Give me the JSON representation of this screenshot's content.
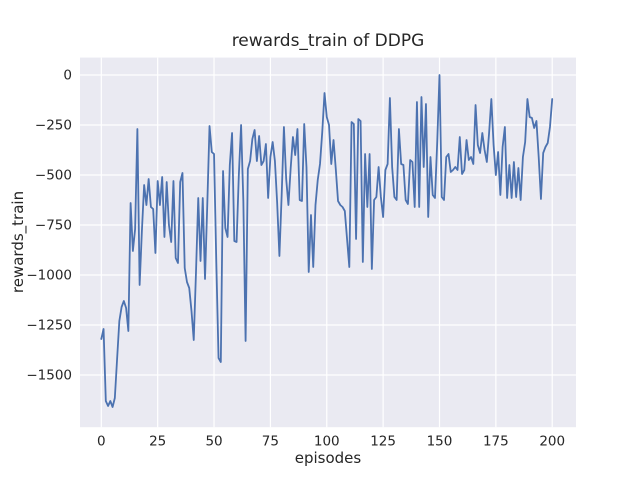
{
  "figure": {
    "background": "#ffffff",
    "axes_background": "#eaeaf2",
    "grid_color": "#ffffff",
    "text_color": "#262626"
  },
  "chart_data": {
    "type": "line",
    "title": "rewards_train of DDPG",
    "xlabel": "episodes",
    "ylabel": "rewards_train",
    "legend": "none",
    "grid": "on",
    "line_color": "#4c72b0",
    "x_start": 0,
    "x_step": 1,
    "x_ticks": [
      {
        "v": 0,
        "label": "0"
      },
      {
        "v": 25,
        "label": "25"
      },
      {
        "v": 50,
        "label": "50"
      },
      {
        "v": 75,
        "label": "75"
      },
      {
        "v": 100,
        "label": "100"
      },
      {
        "v": 125,
        "label": "125"
      },
      {
        "v": 150,
        "label": "150"
      },
      {
        "v": 175,
        "label": "175"
      },
      {
        "v": 200,
        "label": "200"
      }
    ],
    "y_ticks": [
      {
        "v": 0,
        "label": "0"
      },
      {
        "v": -250,
        "label": "−250"
      },
      {
        "v": -500,
        "label": "−500"
      },
      {
        "v": -750,
        "label": "−750"
      },
      {
        "v": -1000,
        "label": "−1000"
      },
      {
        "v": -1250,
        "label": "−1250"
      },
      {
        "v": -1500,
        "label": "−1500"
      }
    ],
    "xlim": [
      -9.45,
      210.55
    ],
    "ylim": [
      -1761,
      87
    ],
    "values": [
      -1320,
      -1270,
      -1630,
      -1655,
      -1630,
      -1660,
      -1615,
      -1420,
      -1230,
      -1160,
      -1130,
      -1165,
      -1280,
      -640,
      -880,
      -770,
      -270,
      -1050,
      -780,
      -550,
      -650,
      -520,
      -660,
      -670,
      -890,
      -530,
      -650,
      -510,
      -810,
      -535,
      -750,
      -835,
      -530,
      -915,
      -940,
      -535,
      -490,
      -965,
      -1035,
      -1065,
      -1180,
      -1325,
      -985,
      -615,
      -930,
      -615,
      -1020,
      -650,
      -255,
      -385,
      -395,
      -935,
      -1415,
      -1435,
      -480,
      -765,
      -810,
      -450,
      -290,
      -830,
      -835,
      -500,
      -250,
      -630,
      -1330,
      -470,
      -430,
      -320,
      -275,
      -430,
      -305,
      -450,
      -430,
      -345,
      -615,
      -410,
      -335,
      -430,
      -640,
      -905,
      -600,
      -260,
      -520,
      -650,
      -465,
      -310,
      -400,
      -270,
      -625,
      -630,
      -245,
      -460,
      -985,
      -700,
      -960,
      -650,
      -525,
      -445,
      -285,
      -90,
      -210,
      -250,
      -445,
      -325,
      -470,
      -630,
      -650,
      -660,
      -680,
      -820,
      -960,
      -235,
      -245,
      -820,
      -220,
      -230,
      -935,
      -395,
      -660,
      -395,
      -970,
      -625,
      -610,
      -460,
      -610,
      -710,
      -475,
      -445,
      -115,
      -460,
      -610,
      -625,
      -270,
      -445,
      -450,
      -625,
      -645,
      -425,
      -435,
      -660,
      -135,
      -660,
      -110,
      -460,
      -145,
      -710,
      -410,
      -600,
      -615,
      -335,
      0,
      -610,
      -625,
      -410,
      -395,
      -485,
      -475,
      -460,
      -475,
      -310,
      -495,
      -475,
      -325,
      -425,
      -410,
      -445,
      -150,
      -350,
      -390,
      -290,
      -375,
      -435,
      -290,
      -120,
      -350,
      -500,
      -385,
      -600,
      -360,
      -260,
      -615,
      -450,
      -615,
      -435,
      -610,
      -465,
      -625,
      -410,
      -335,
      -120,
      -210,
      -215,
      -265,
      -230,
      -410,
      -620,
      -390,
      -360,
      -340,
      -260,
      -120
    ]
  }
}
